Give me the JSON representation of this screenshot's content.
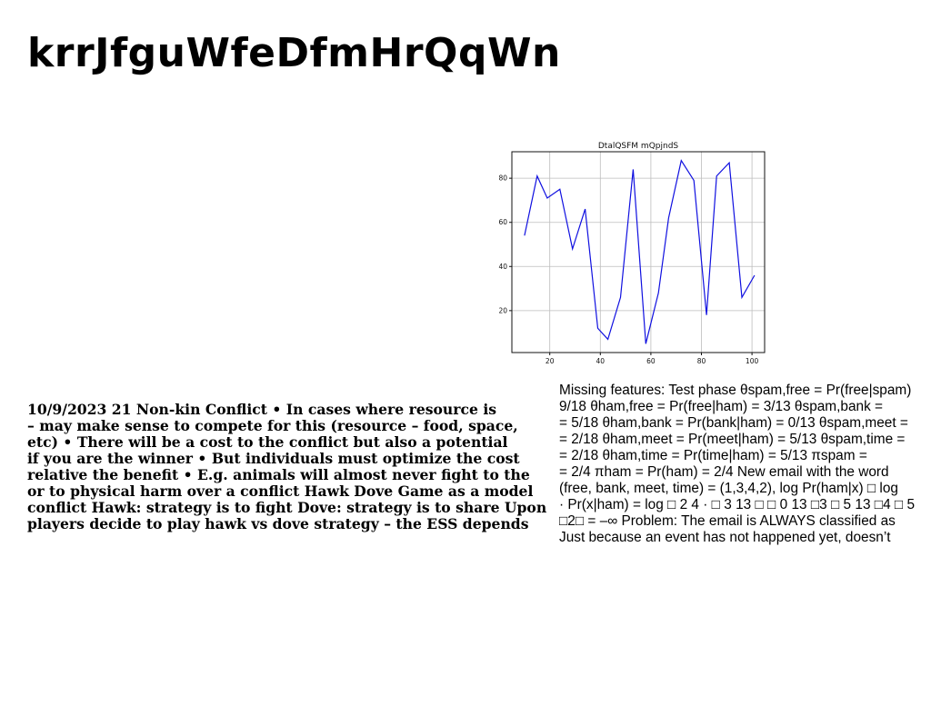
{
  "title": "krrJfguWfeDfmHrQqWn",
  "chart_data": {
    "type": "line",
    "title": "DtalQSFM mQpjndS",
    "xlabel": "",
    "ylabel": "",
    "xlim": [
      5,
      105
    ],
    "ylim": [
      1,
      92
    ],
    "xticks": [
      20,
      40,
      60,
      80,
      100
    ],
    "yticks": [
      20,
      40,
      60,
      80
    ],
    "grid": true,
    "x": [
      10,
      15,
      19,
      24,
      29,
      34,
      39,
      43,
      48,
      53,
      58,
      63,
      67,
      72,
      77,
      82,
      86,
      91,
      96,
      101
    ],
    "y": [
      54,
      81,
      71,
      75,
      48,
      66,
      12,
      7,
      26,
      84,
      5,
      28,
      62,
      88,
      79,
      18,
      81,
      87,
      26,
      36
    ],
    "series": [
      {
        "color": "#1010e0"
      }
    ]
  },
  "left_column": {
    "lines": [
      "10/9/2023 21 Non-kin Conflict • In cases where resource is",
      "– may make sense to compete for this (resource – food, space,",
      "etc) • There will be a cost to the conflict but also a potential",
      "if you are the winner • But individuals must optimize the cost",
      "relative the benefit • E.g. animals will almost never fight to the",
      "or to physical harm over a conflict Hawk Dove Game as a model",
      "conflict Hawk: strategy is to fight Dove: strategy is to share Upon",
      "players decide to play hawk vs dove strategy – the ESS depends"
    ]
  },
  "right_column": {
    "lines": [
      "Missing features: Test phase θspam,free = Pr(free|spam)",
      "9/18 θham,free = Pr(free|ham) = 3/13 θspam,bank =",
      "= 5/18 θham,bank = Pr(bank|ham) = 0/13 θspam,meet =",
      "= 2/18 θham,meet = Pr(meet|ham) = 5/13 θspam,time =",
      "= 2/18 θham,time = Pr(time|ham) = 5/13 πspam =",
      "= 2/4 πham = Pr(ham) = 2/4 New email with the word",
      "(free, bank, meet, time) = (1,3,4,2), log Pr(ham|x) □ log",
      "· Pr(x|ham) = log □ 2 4 · □ 3 13 □ □ 0 13 □3 □ 5 13 □4 □ 5",
      "□2□ = –∞ Problem: The email is ALWAYS classified as",
      "Just because an event has not happened yet, doesn’t"
    ]
  }
}
